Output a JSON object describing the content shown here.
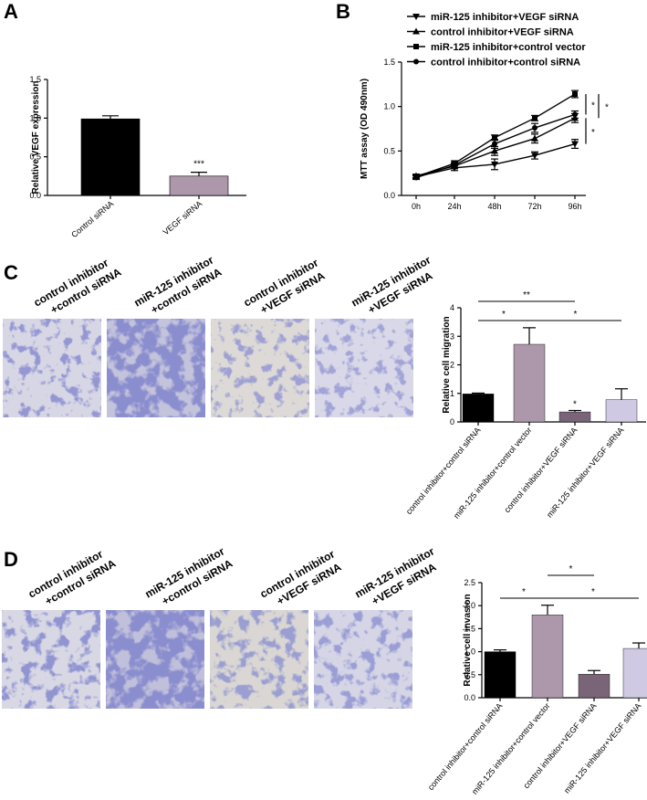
{
  "panels": {
    "A": "A",
    "B": "B",
    "C": "C",
    "D": "D"
  },
  "colors": {
    "black": "#000000",
    "mauve": "#ad98ab",
    "dark_purple": "#7a6578",
    "lavender": "#cfc9e3",
    "stain": "#4e4fa6",
    "stain_bg": "#d7d6e4"
  },
  "chart_data": [
    {
      "id": "A",
      "type": "bar",
      "categories": [
        "Control siRNA",
        "VEGF siRNA"
      ],
      "values": [
        0.99,
        0.25
      ],
      "errors": [
        0.04,
        0.05
      ],
      "ylabel": "Relative VEGF expression",
      "ylim": [
        0,
        1.5
      ],
      "yticks": [
        "0.0",
        "0.5",
        "1.0",
        "1.5"
      ],
      "annotations": [
        "***"
      ]
    },
    {
      "id": "B",
      "type": "line",
      "x": [
        "0h",
        "24h",
        "48h",
        "72h",
        "96h"
      ],
      "ylabel": "MTT assay (OD 490nm)",
      "ylim": [
        0,
        1.5
      ],
      "yticks": [
        "0.0",
        "0.5",
        "1.0",
        "1.5"
      ],
      "series": [
        {
          "name": "miR-125 inhibitor+VEGF siRNA",
          "marker": "triangle-down",
          "values": [
            0.21,
            0.31,
            0.35,
            0.45,
            0.58
          ],
          "errors": [
            0.02,
            0.03,
            0.06,
            0.04,
            0.05
          ]
        },
        {
          "name": "control inhibitor+VEGF siRNA",
          "marker": "triangle-up",
          "values": [
            0.22,
            0.33,
            0.5,
            0.64,
            0.87
          ],
          "errors": [
            0.02,
            0.03,
            0.05,
            0.05,
            0.05
          ]
        },
        {
          "name": "miR-125 inhibitor+control vector",
          "marker": "square",
          "values": [
            0.21,
            0.36,
            0.65,
            0.87,
            1.14
          ],
          "errors": [
            0.02,
            0.03,
            0.03,
            0.03,
            0.04
          ]
        },
        {
          "name": "control inhibitor+control siRNA",
          "marker": "circle",
          "values": [
            0.2,
            0.34,
            0.58,
            0.76,
            0.91
          ],
          "errors": [
            0.02,
            0.03,
            0.05,
            0.05,
            0.04
          ]
        }
      ],
      "annotations": [
        "*",
        "*",
        "*"
      ]
    },
    {
      "id": "C",
      "type": "bar",
      "categories": [
        "control inhibitor+control siRNA",
        "miR-125 inhibitor+control vector",
        "control inhibitor+VEGF siRNA",
        "miR-125 inhibitor+VEGF siRNA"
      ],
      "values": [
        0.98,
        2.72,
        0.35,
        0.78
      ],
      "errors": [
        0.03,
        0.58,
        0.05,
        0.38
      ],
      "ylabel": "Relative cell migration",
      "ylim": [
        0,
        4
      ],
      "yticks": [
        "0",
        "1",
        "2",
        "3",
        "4"
      ],
      "annotations": [
        "**",
        "*",
        "*",
        "*"
      ],
      "image_labels": [
        [
          "control inhibitor",
          "+control siRNA"
        ],
        [
          "miR-125 inhibitor",
          "+control siRNA"
        ],
        [
          "control inhibitor",
          "+VEGF siRNA"
        ],
        [
          "miR-125 inhibitor",
          "+VEGF siRNA"
        ]
      ]
    },
    {
      "id": "D",
      "type": "bar",
      "categories": [
        "control inhibitor+control siRNA",
        "miR-125 inhibitor+control vector",
        "control inhibitor+VEGF siRNA",
        "miR-125 inhibitor+VEGF siRNA"
      ],
      "values": [
        1.0,
        1.8,
        0.51,
        1.07
      ],
      "errors": [
        0.04,
        0.21,
        0.08,
        0.12
      ],
      "ylabel": "Relative cell invasion",
      "ylim": [
        0,
        2.5
      ],
      "yticks": [
        "0.0",
        "0.5",
        "1.0",
        "1.5",
        "2.0",
        "2.5"
      ],
      "annotations": [
        "*",
        "*",
        "*"
      ],
      "image_labels": [
        [
          "control inhibitor",
          "+control siRNA"
        ],
        [
          "miR-125 inhibitor",
          "+control siRNA"
        ],
        [
          "control inhibitor",
          "+VEGF siRNA"
        ],
        [
          "miR-125 inhibitor",
          "+VEGF siRNA"
        ]
      ]
    }
  ]
}
